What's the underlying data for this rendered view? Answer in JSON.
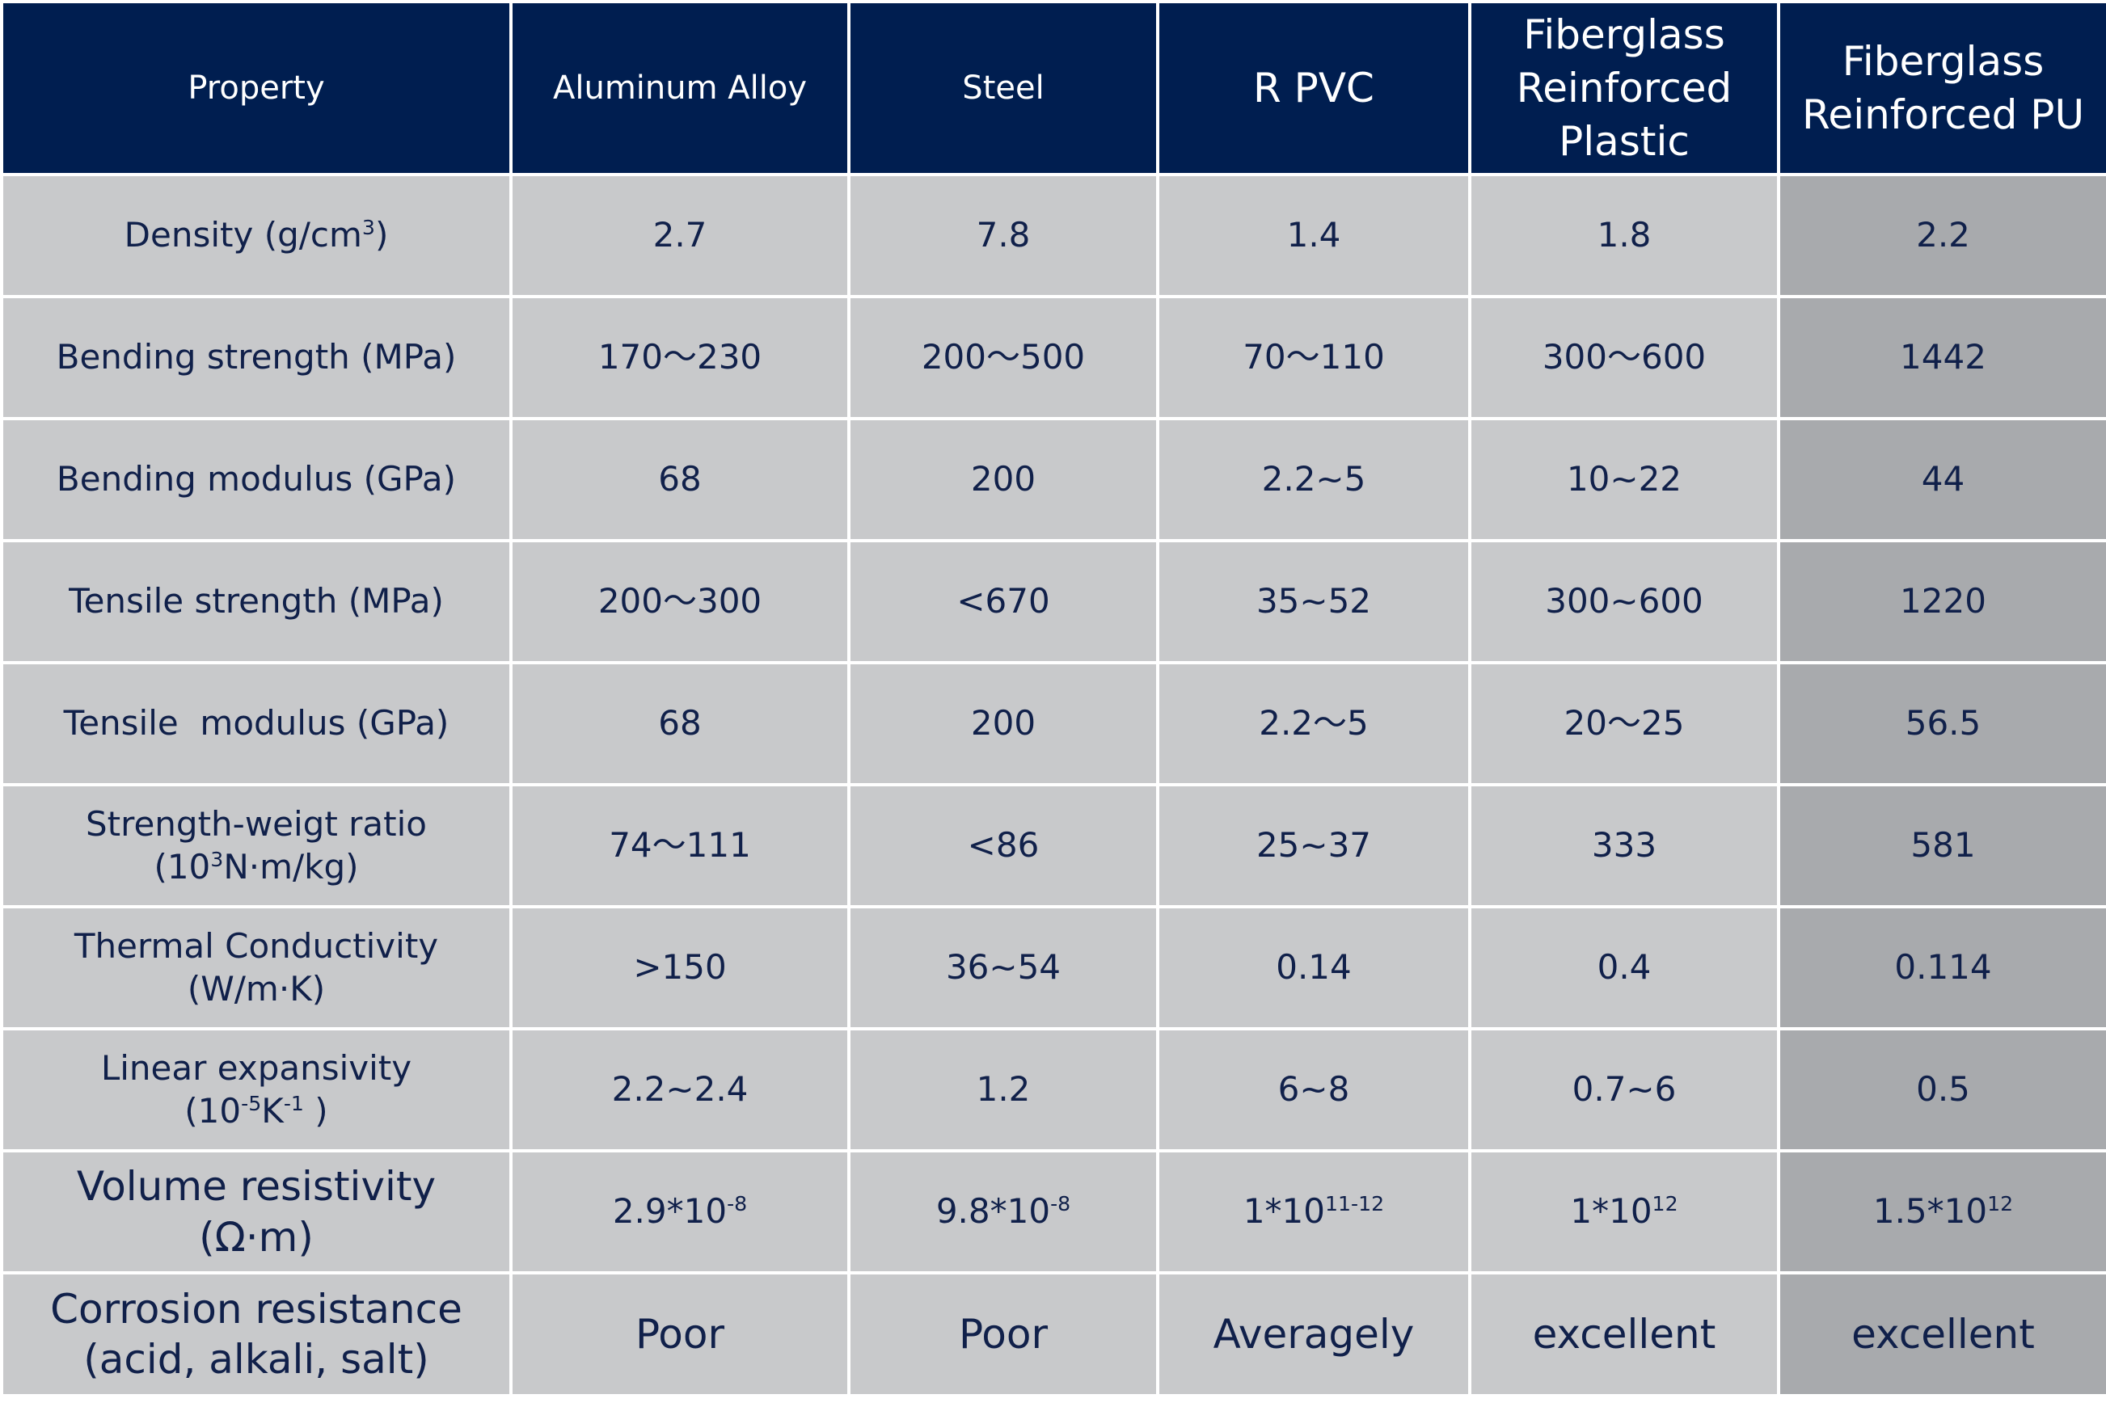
{
  "header": {
    "property": "Property",
    "aluminum": "Aluminum Alloy",
    "steel": "Steel",
    "rpvc": "R PVC",
    "frp": [
      "Fiberglass",
      "Reinforced",
      "Plastic"
    ],
    "frpu": [
      "Fiberglass",
      "Reinforced PU"
    ]
  },
  "rows": [
    {
      "property": [
        "Density (g/cm",
        "3",
        ")"
      ],
      "aluminum": "2.7",
      "steel": "7.8",
      "rpvc": "1.4",
      "frp": "1.8",
      "frpu": "2.2"
    },
    {
      "property": "Bending strength (MPa)",
      "aluminum": "170～230",
      "steel": "200～500",
      "rpvc": "70～110",
      "frp": "300～600",
      "frpu": "1442"
    },
    {
      "property": "Bending modulus (GPa)",
      "aluminum": "68",
      "steel": "200",
      "rpvc": "2.2~5",
      "frp": "10~22",
      "frpu": "44"
    },
    {
      "property": "Tensile strength (MPa)",
      "aluminum": "200～300",
      "steel": "<670",
      "rpvc": "35~52",
      "frp": "300~600",
      "frpu": "1220"
    },
    {
      "property": "Tensile  modulus (GPa)",
      "aluminum": "68",
      "steel": "200",
      "rpvc": "2.2～5",
      "frp": "20～25",
      "frpu": "56.5"
    },
    {
      "property": [
        "Strength-weigt ratio",
        "(10",
        "3",
        "N·m/kg)"
      ],
      "aluminum": "74～111",
      "steel": "<86",
      "rpvc": "25~37",
      "frp": "333",
      "frpu": "581"
    },
    {
      "property": [
        "Thermal Conductivity",
        "(W/m·K)"
      ],
      "aluminum": ">150",
      "steel": "36~54",
      "rpvc": "0.14",
      "frp": "0.4",
      "frpu": "0.114"
    },
    {
      "property": [
        "Linear expansivity",
        "(10",
        "-5",
        "K",
        "-1",
        " )"
      ],
      "aluminum": "2.2~2.4",
      "steel": "1.2",
      "rpvc": "6~8",
      "frp": "0.7~6",
      "frpu": "0.5"
    },
    {
      "property": [
        "Volume resistivity",
        "(Ω·m)"
      ],
      "aluminum": [
        "2.9*10",
        "-8"
      ],
      "steel": [
        "9.8*10",
        "-8"
      ],
      "rpvc": [
        "1*10",
        "11-12"
      ],
      "frp": [
        "1*10",
        "12"
      ],
      "frpu": [
        "1.5*10",
        "12"
      ]
    },
    {
      "property": [
        "Corrosion resistance",
        "(acid, alkali, salt)"
      ],
      "aluminum": "Poor",
      "steel": "Poor",
      "rpvc": "Averagely",
      "frp": "excellent",
      "frpu": "excellent"
    }
  ],
  "colors": {
    "header_bg": "#001e50",
    "cell_bg": "#c8c9cb",
    "highlight_bg": "#a8aaad",
    "text": "#10204a"
  }
}
